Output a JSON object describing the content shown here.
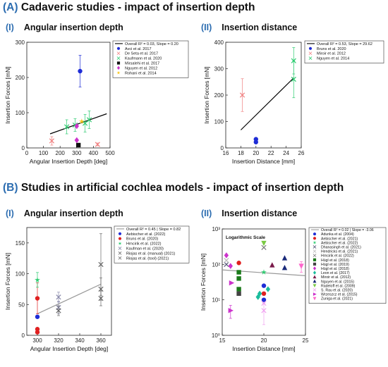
{
  "sections": [
    {
      "tag": "(A)",
      "title": "Cadaveric studies - impact of insertion depth"
    },
    {
      "tag": "(B)",
      "title": "Studies in artificial cochlea models - impact of insertion depth"
    }
  ],
  "panels": [
    {
      "roman": "(I)",
      "title": "Angular insertion depth"
    },
    {
      "roman": "(II)",
      "title": "Insertion distance"
    },
    {
      "roman": "(I)",
      "title": "Angular insertion depth"
    },
    {
      "roman": "(II)",
      "title": "Insertion distance"
    }
  ],
  "chart_data": [
    {
      "type": "scatter",
      "xlabel": "Angular Insertion Depth [deg]",
      "ylabel": "Insertion Forces [mN]",
      "xlim": [
        0,
        500
      ],
      "ylim": [
        0,
        300
      ],
      "xticks": [
        0,
        100,
        200,
        300,
        400,
        500
      ],
      "yticks": [
        0,
        100,
        200,
        300
      ],
      "fit": {
        "label": "Overall R² = 0.03, Slope = 0.20",
        "color": "#000000",
        "x": [
          140,
          480
        ],
        "y": [
          40,
          97
        ]
      },
      "legend_position": "top-right",
      "series": [
        {
          "name": "Avci et al. 2017",
          "color": "#1f2dd6",
          "marker": "circle",
          "points": [
            {
              "x": 320,
              "y": 218,
              "err": 45
            }
          ]
        },
        {
          "name": "De Seta et al. 2017",
          "color": "#f08080",
          "marker": "x",
          "points": [
            {
              "x": 150,
              "y": 20,
              "err": 12
            },
            {
              "x": 425,
              "y": 10,
              "err": 4
            }
          ]
        },
        {
          "name": "Kaufmann et al. 2020",
          "color": "#2ecc71",
          "marker": "x",
          "points": [
            {
              "x": 240,
              "y": 60,
              "err": 20
            },
            {
              "x": 290,
              "y": 65,
              "err": 18
            },
            {
              "x": 350,
              "y": 70,
              "err": 25
            },
            {
              "x": 375,
              "y": 80,
              "err": 25
            }
          ]
        },
        {
          "name": "Mirsalehi et al. 2017",
          "color": "#111111",
          "marker": "square",
          "points": [
            {
              "x": 310,
              "y": 8
            }
          ]
        },
        {
          "name": "Nguyen et al. 2012",
          "color": "#cc33cc",
          "marker": "diamond",
          "points": [
            {
              "x": 300,
              "y": 62
            },
            {
              "x": 300,
              "y": 22
            }
          ]
        },
        {
          "name": "Rohani et al. 2014",
          "color": "#f5c518",
          "marker": "star",
          "points": [
            {
              "x": 330,
              "y": 75
            }
          ]
        }
      ]
    },
    {
      "type": "scatter",
      "xlabel": "Insertion Distance [mm]",
      "ylabel": "Insertion Forces [mN]",
      "xlim": [
        16,
        26
      ],
      "ylim": [
        0,
        400
      ],
      "xticks": [
        16,
        18,
        20,
        22,
        24,
        26
      ],
      "yticks": [
        0,
        100,
        200,
        300,
        400
      ],
      "fit": {
        "label": "Overall R² = 0.53, Slope = 29.62",
        "color": "#000000",
        "x": [
          18,
          25
        ],
        "y": [
          68,
          265
        ]
      },
      "legend_position": "top-right",
      "series": [
        {
          "name": "Bruns et al. 2020",
          "color": "#1f2dd6",
          "marker": "circle",
          "points": [
            {
              "x": 20,
              "y": 33
            },
            {
              "x": 20,
              "y": 22
            }
          ]
        },
        {
          "name": "Miroir et al. 2012",
          "color": "#f08080",
          "marker": "x",
          "points": [
            {
              "x": 18.2,
              "y": 200,
              "err": 62
            }
          ]
        },
        {
          "name": "Nguyen et al. 2014",
          "color": "#2ecc71",
          "marker": "x",
          "points": [
            {
              "x": 25,
              "y": 330,
              "err": 50
            },
            {
              "x": 25,
              "y": 260,
              "err": 70
            }
          ]
        }
      ]
    },
    {
      "type": "scatter",
      "xlabel": "Angular Insertion Depth [deg]",
      "ylabel": "Insertion Forces [mN]",
      "xlim": [
        290,
        370
      ],
      "ylim": [
        0,
        175
      ],
      "xticks": [
        300,
        320,
        340,
        360
      ],
      "yticks": [
        0,
        50,
        100,
        150
      ],
      "fit": {
        "label": "Overall R² = 0.45 | Slope = 0.82",
        "color": "#999999",
        "x": [
          300,
          360
        ],
        "y": [
          35,
          83
        ]
      },
      "legend_position": "top-right",
      "series": [
        {
          "name": "Aebischer et al. (2022)",
          "color": "#1f2dd6",
          "marker": "circle",
          "points": [
            {
              "x": 300,
              "y": 30
            }
          ]
        },
        {
          "name": "Bruns et al. (2020)",
          "color": "#e02020",
          "marker": "circle",
          "points": [
            {
              "x": 300,
              "y": 60,
              "err": 25
            },
            {
              "x": 300,
              "y": 10
            },
            {
              "x": 300,
              "y": 5
            }
          ]
        },
        {
          "name": "Hrncirik et al. (2022)",
          "color": "#2ecc71",
          "marker": "star",
          "points": [
            {
              "x": 300,
              "y": 90,
              "err": 12
            }
          ]
        },
        {
          "name": "Kaufman et al. (2020)",
          "color": "#8888aa",
          "marker": "x",
          "points": [
            {
              "x": 320,
              "y": 45,
              "err": 10
            },
            {
              "x": 320,
              "y": 62,
              "err": 8
            }
          ]
        },
        {
          "name": "Riojas et al. (manual) (2021)",
          "color": "#666666",
          "marker": "x",
          "points": [
            {
              "x": 360,
              "y": 115,
              "err": 50
            },
            {
              "x": 360,
              "y": 75,
              "err": 18
            }
          ]
        },
        {
          "name": "Riojas et al. (tool) (2021)",
          "color": "#666666",
          "marker": "x",
          "points": [
            {
              "x": 360,
              "y": 60,
              "err": 12
            },
            {
              "x": 320,
              "y": 40,
              "err": 8
            }
          ]
        }
      ]
    },
    {
      "type": "scatter",
      "annotation": "Logarithmic Scale",
      "xlabel": "Insertion Distance [mm]",
      "ylabel": "Insertion Forces [mN]",
      "xlim": [
        15,
        25
      ],
      "ylim": [
        1,
        1000
      ],
      "yscale": "log",
      "xticks": [
        15,
        20,
        25
      ],
      "yticks": [
        1,
        10,
        100,
        1000
      ],
      "ytick_labels": [
        "10⁰",
        "10¹",
        "10²",
        "10³"
      ],
      "fit": {
        "label": "Overall R² = 0.02 | Slope = -3.06",
        "color": "#999999",
        "x": [
          15,
          25
        ],
        "y": [
          70,
          48
        ]
      },
      "legend_position": "top-right",
      "series": [
        {
          "name": "Adunka et al. (2004)",
          "color": "#1f2dd6",
          "marker": "circle",
          "points": [
            {
              "x": 20,
              "y": 10
            },
            {
              "x": 20,
              "y": 25
            }
          ]
        },
        {
          "name": "Aebischer et al. (2021)",
          "color": "#e02020",
          "marker": "circle",
          "points": [
            {
              "x": 17,
              "y": 110
            },
            {
              "x": 20,
              "y": 15
            }
          ]
        },
        {
          "name": "Aebischer et al. (2022)",
          "color": "#2ecc71",
          "marker": "star",
          "points": [
            {
              "x": 20,
              "y": 60
            }
          ]
        },
        {
          "name": "Dhanasingh et al. (2021)",
          "color": "#555577",
          "marker": "x",
          "points": [
            {
              "x": 15.5,
              "y": 100
            }
          ]
        },
        {
          "name": "Hendricks et al. (2021)",
          "color": "#bbbbbb",
          "marker": "x",
          "points": [
            {
              "x": 15.5,
              "y": 130
            }
          ]
        },
        {
          "name": "Hrncirik et al. (2022)",
          "color": "#777777",
          "marker": "x",
          "points": [
            {
              "x": 20,
              "y": 300
            }
          ]
        },
        {
          "name": "Hügl et al. (2018)",
          "color": "#1a7a1a",
          "marker": "square",
          "points": [
            {
              "x": 17,
              "y": 40
            },
            {
              "x": 17,
              "y": 60
            },
            {
              "x": 17,
              "y": 20
            }
          ]
        },
        {
          "name": "Hügl et al. (2019)",
          "color": "#444444",
          "marker": "square",
          "points": [
            {
              "x": 17,
              "y": 15
            }
          ]
        },
        {
          "name": "Hügl et al. (2018)",
          "color": "#cc33cc",
          "marker": "diamond",
          "points": [
            {
              "x": 15.5,
              "y": 180
            },
            {
              "x": 16,
              "y": 90
            }
          ]
        },
        {
          "name": "Leon et al. (2017)",
          "color": "#1abc9c",
          "marker": "diamond",
          "points": [
            {
              "x": 19.5,
              "y": 15
            },
            {
              "x": 19.3,
              "y": 12
            },
            {
              "x": 20.5,
              "y": 20
            }
          ]
        },
        {
          "name": "Miroir et al. (2012)",
          "color": "#7a1a4a",
          "marker": "triangle",
          "points": [
            {
              "x": 21,
              "y": 95
            }
          ]
        },
        {
          "name": "Nguyen et al. (2015)",
          "color": "#1a2a7a",
          "marker": "triangle",
          "points": [
            {
              "x": 22.5,
              "y": 80
            },
            {
              "x": 22.5,
              "y": 150
            }
          ]
        },
        {
          "name": "Radeloff et al. (2009)",
          "color": "#7ac943",
          "marker": "triangle-down",
          "points": [
            {
              "x": 20,
              "y": 400
            }
          ]
        },
        {
          "name": "S. Rau et al. (2020)",
          "color": "#f0a0f0",
          "marker": "x",
          "points": [
            {
              "x": 20,
              "y": 5,
              "err": 3
            },
            {
              "x": 20,
              "y": 8
            }
          ]
        },
        {
          "name": "Wrzeszcz et al. (2015)",
          "color": "#cc33cc",
          "marker": "triangle-right",
          "points": [
            {
              "x": 16,
              "y": 5,
              "err": 2
            },
            {
              "x": 16.1,
              "y": 30
            }
          ]
        },
        {
          "name": "Zuniga et al. (2021)",
          "color": "#ff66cc",
          "marker": "triangle-down",
          "points": [
            {
              "x": 24.5,
              "y": 90,
              "err": 30
            }
          ]
        }
      ]
    }
  ]
}
